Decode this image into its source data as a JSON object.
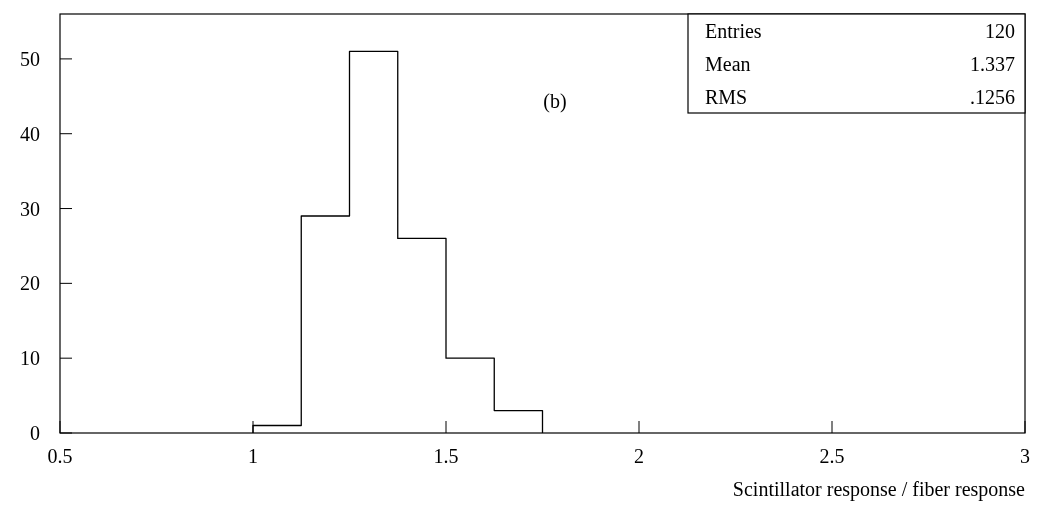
{
  "chart_data": {
    "type": "histogram",
    "bins": [
      1,
      1.125,
      1.25,
      1.375,
      1.5,
      1.625,
      1.75
    ],
    "values": [
      1,
      29,
      51,
      26,
      10,
      3
    ],
    "color": "#000000",
    "xlabel": "Scintillator response / fiber response",
    "xlim": [
      0.5,
      3
    ],
    "xticks": [
      0.5,
      1,
      1.5,
      2,
      2.5,
      3
    ],
    "ylim": [
      0,
      56
    ],
    "yticks": [
      0,
      10,
      20,
      30,
      40,
      50
    ],
    "grid": false,
    "annotations": [
      "(b)",
      "Entries 120",
      "Mean 1.337",
      "RMS .1256"
    ]
  }
}
